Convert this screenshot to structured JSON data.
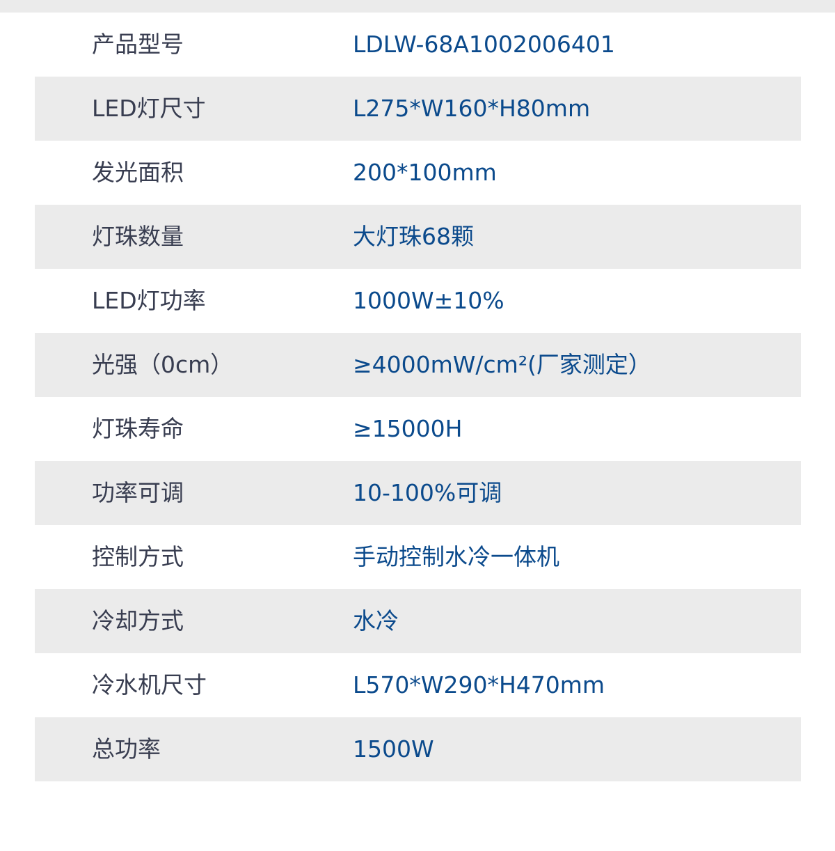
{
  "specs": [
    {
      "label": "产品型号",
      "value": "LDLW-68A1002006401"
    },
    {
      "label": "LED灯尺寸",
      "value": "L275*W160*H80mm"
    },
    {
      "label": "发光面积",
      "value": "200*100mm"
    },
    {
      "label": "灯珠数量",
      "value": "大灯珠68颗"
    },
    {
      "label": "LED灯功率",
      "value": "1000W±10%"
    },
    {
      "label": "光强（0cm）",
      "value": "≥4000mW/cm²(厂家测定）"
    },
    {
      "label": "灯珠寿命",
      "value": "≥15000H"
    },
    {
      "label": "功率可调",
      "value": "10-100%可调"
    },
    {
      "label": "控制方式",
      "value": "手动控制水冷一体机"
    },
    {
      "label": "冷却方式",
      "value": "水冷"
    },
    {
      "label": "冷水机尺寸",
      "value": "L570*W290*H470mm"
    },
    {
      "label": "总功率",
      "value": "1500W"
    }
  ],
  "colors": {
    "label": "#383d50",
    "value": "#0b4a8c",
    "stripe": "#ebebeb"
  }
}
